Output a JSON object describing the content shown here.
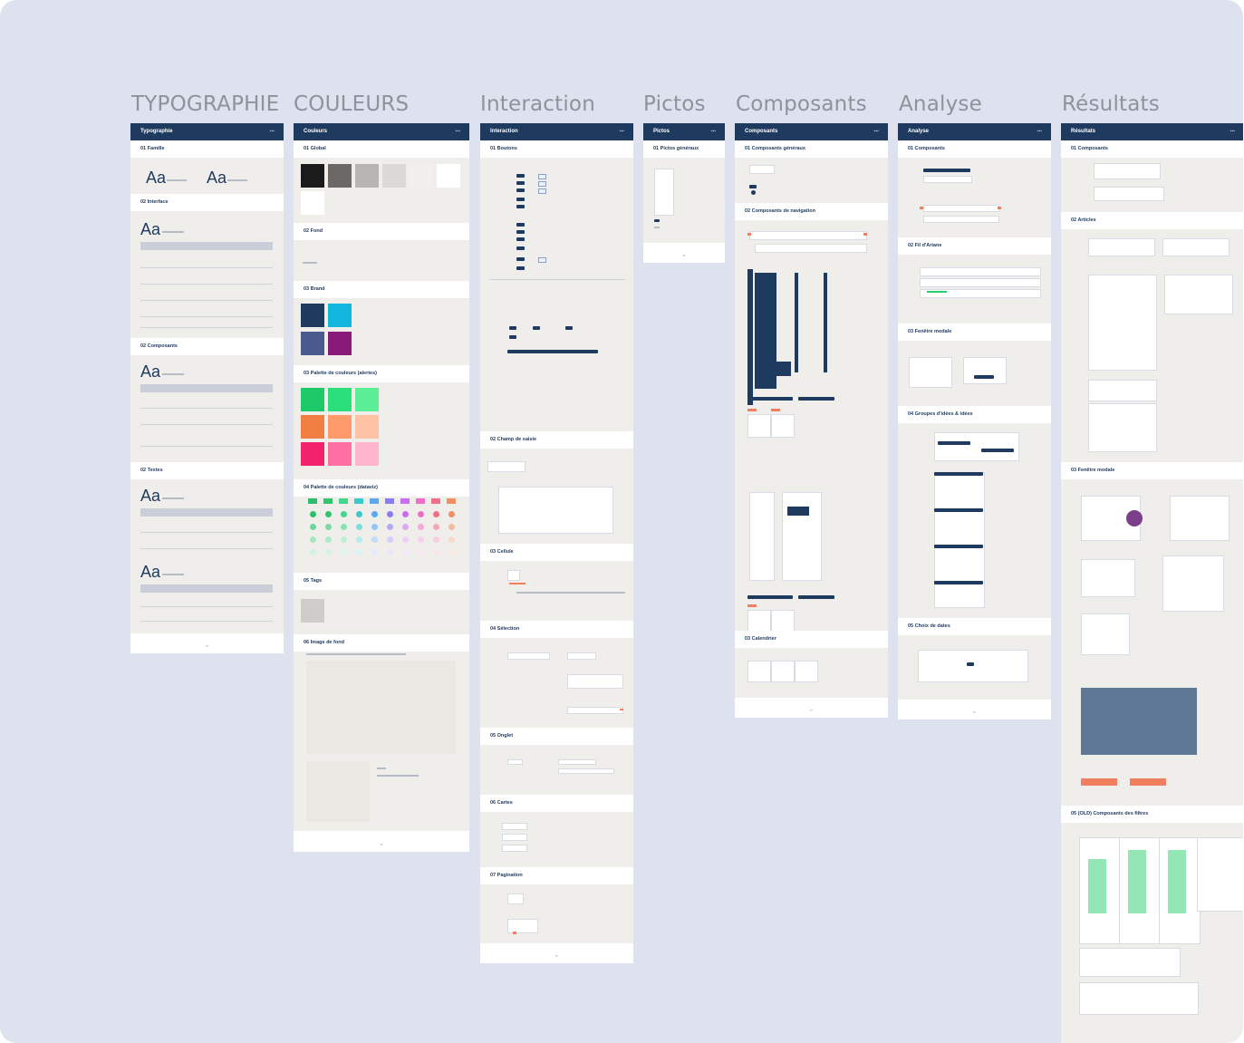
{
  "columns": [
    {
      "title": "TYPOGRAPHIE",
      "header": "Typographie",
      "sections": [
        "01 Famille",
        "02 Interface",
        "02 Composants",
        "02 Textes"
      ]
    },
    {
      "title": "COULEURS",
      "header": "Couleurs",
      "sections": [
        "01 Global",
        "02 Fond",
        "03 Brand",
        "03 Palette de couleurs (alertes)",
        "04 Palette de couleurs (dataviz)",
        "05 Tags",
        "06 Image de fond"
      ]
    },
    {
      "title": "Interaction",
      "header": "Interaction",
      "sections": [
        "01 Boutons",
        "02 Champ de saisie",
        "03 Cellule",
        "04 Sélection",
        "05 Onglet",
        "06 Cartes",
        "07 Pagination"
      ]
    },
    {
      "title": "Pictos",
      "header": "Pictos",
      "sections": [
        "01 Pictos généraux"
      ]
    },
    {
      "title": "Composants",
      "header": "Composants",
      "sections": [
        "01 Composants généraux",
        "02 Composants de navigation",
        "03 Calendrier"
      ]
    },
    {
      "title": "Analyse",
      "header": "Analyse",
      "sections": [
        "01 Composants",
        "02 Fil d'Ariane",
        "03 Fenêtre modale",
        "04 Groupes d'idées & idées",
        "05 Choix de dates"
      ]
    },
    {
      "title": "Résultats",
      "header": "Résultats",
      "sections": [
        "01 Composants",
        "02 Articles",
        "03 Fenêtre modale",
        "05 (OLD) Composants des filtres"
      ]
    }
  ],
  "colors": {
    "canvas": "#dde2ee",
    "header": "#1f3a5f",
    "board_bg": "#f0eeeb",
    "accent": "#f07f5f",
    "green": "#25d06a"
  }
}
